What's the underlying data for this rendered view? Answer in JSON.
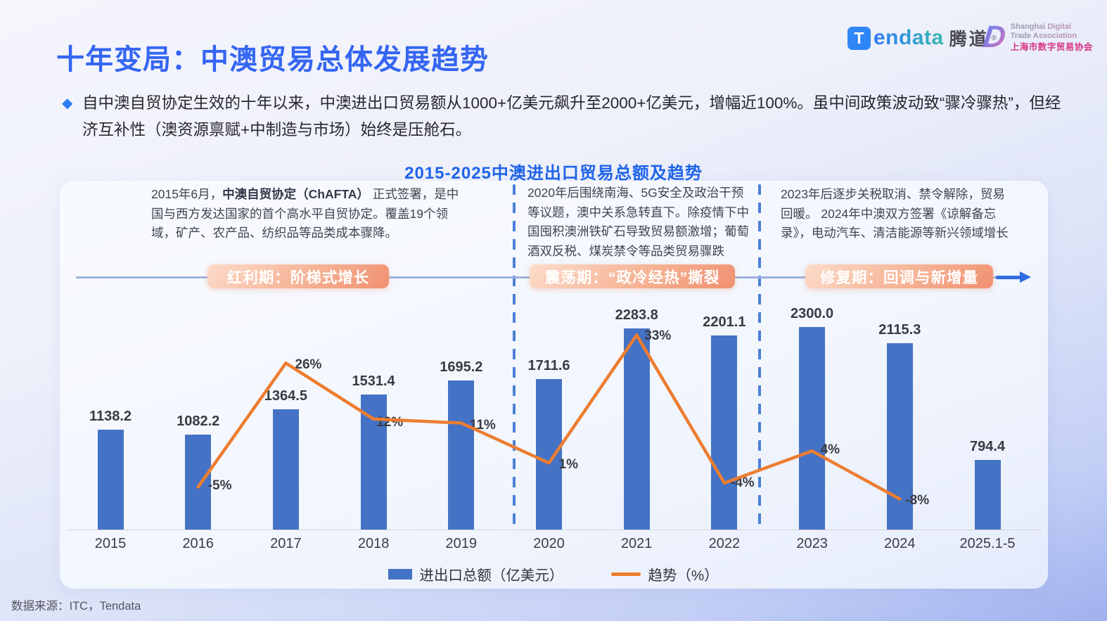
{
  "header": {
    "title": "十年变局：中澳贸易总体发展趋势",
    "tendata": {
      "icon_letter": "T",
      "wordmark": "endata",
      "cjk": "腾道",
      "reg": "®"
    },
    "sdta": {
      "monogram": "D",
      "line1": "Shanghai Digital",
      "line2": "Trade Association",
      "line3": "上海市数字贸易协会"
    }
  },
  "intro": {
    "bullet": "◆",
    "text": "自中澳自贸协定生效的十年以来，中澳进出口贸易额从1000+亿美元飙升至2000+亿美元，增幅近100%。虽中间政策波动致“骤冷骤热”，但经济互补性（澳资源禀赋+中制造与市场）始终是压舱石。"
  },
  "chart": {
    "title": "2015-2025中澳进出口贸易总额及趋势",
    "annotations": [
      {
        "segments": [
          {
            "t": "2015年6月，"
          },
          {
            "t": "中澳自贸协定（ChAFTA）",
            "b": true
          },
          {
            "t": " 正式签署，是中国与西方发达国家的首个高水平自贸协定。覆盖19个领域，矿产、农产品、纺织品等品类成本骤降。"
          }
        ]
      },
      {
        "segments": [
          {
            "t": "2020年后围绕南海、5G安全及政治干预等议题，澳中关系急转直下。除疫情下中国囤积澳洲铁矿石导致贸易额激增；葡萄酒双反税、煤炭禁令等品类贸易骤跌"
          }
        ]
      },
      {
        "segments": [
          {
            "t": "2023年后逐步关税取消、禁令解除，贸易回暖。 2024年中澳双方签署《谅解备忘录》，电动汽车、清洁能源等新兴领域增长"
          }
        ]
      }
    ],
    "phases": [
      {
        "label": "红利期：阶梯式增长"
      },
      {
        "label": "震荡期：“政冷经热”撕裂"
      },
      {
        "label": "修复期：回调与新增量"
      }
    ],
    "legend": [
      {
        "label": "进出口总额（亿美元）",
        "swatch": "bar",
        "color": "#4472C4"
      },
      {
        "label": "趋势（%）",
        "swatch": "line",
        "color": "#ED7D31"
      }
    ]
  },
  "chart_data": {
    "type": "bar",
    "title": "2015-2025中澳进出口贸易总额及趋势",
    "categories": [
      "2015",
      "2016",
      "2017",
      "2018",
      "2019",
      "2020",
      "2021",
      "2022",
      "2023",
      "2024",
      "2025.1-5"
    ],
    "series": [
      {
        "name": "进出口总额（亿美元）",
        "type": "bar",
        "color": "#4472C4",
        "values": [
          1138.2,
          1082.2,
          1364.5,
          1531.4,
          1695.2,
          1711.6,
          2283.8,
          2201.1,
          2300.0,
          2115.3,
          794.4
        ]
      },
      {
        "name": "趋势（%）",
        "type": "line",
        "color": "#ED7D31",
        "values": [
          null,
          -5,
          26,
          12,
          11,
          1,
          33,
          -4,
          4,
          -8,
          null
        ],
        "labels": [
          "",
          "-5%",
          "26%",
          "12%",
          "11%",
          "1%",
          "33%",
          "-4%",
          "4%",
          "-8%",
          ""
        ]
      }
    ],
    "xlabel": "",
    "ylabel": "",
    "grid": false,
    "legend_position": "bottom",
    "phase_dividers_after": [
      "2019",
      "2022"
    ]
  },
  "footer": {
    "source": "数据来源：ITC，Tendata"
  }
}
